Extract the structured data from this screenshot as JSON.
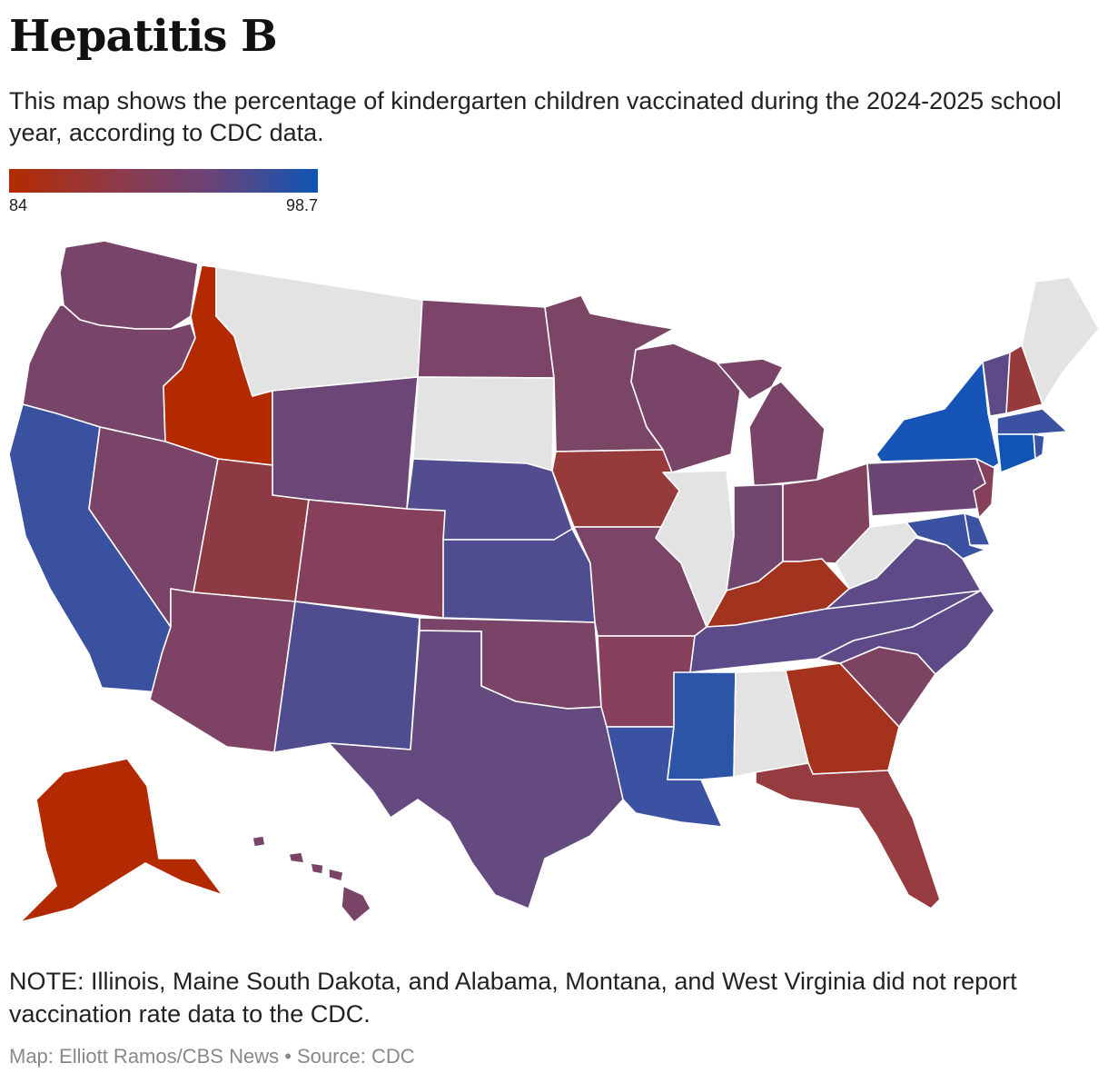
{
  "title": "Hepatitis B",
  "subtitle": "This map shows the percentage of kindergarten children vaccinated during the 2024-2025 school year, according to CDC data.",
  "legend": {
    "min_label": "84",
    "max_label": "98.7",
    "min": 84,
    "max": 98.7,
    "colors": [
      "#b32a00",
      "#0f55b5"
    ]
  },
  "no_data_color": "#e3e3e3",
  "states": [
    {
      "id": "WA",
      "color": "#79446a"
    },
    {
      "id": "OR",
      "color": "#79446a"
    },
    {
      "id": "CA",
      "color": "#3a51a0"
    },
    {
      "id": "ID",
      "color": "#b32a00"
    },
    {
      "id": "NV",
      "color": "#7a4468"
    },
    {
      "id": "MT",
      "color": "#e3e3e3"
    },
    {
      "id": "WY",
      "color": "#6b4676"
    },
    {
      "id": "UT",
      "color": "#8e3a45"
    },
    {
      "id": "AZ",
      "color": "#7d4264"
    },
    {
      "id": "CO",
      "color": "#86405b"
    },
    {
      "id": "NM",
      "color": "#4f4d90"
    },
    {
      "id": "ND",
      "color": "#7b4468"
    },
    {
      "id": "SD",
      "color": "#e3e3e3"
    },
    {
      "id": "NE",
      "color": "#524d8e"
    },
    {
      "id": "KS",
      "color": "#4f4d90"
    },
    {
      "id": "OK",
      "color": "#7a4468"
    },
    {
      "id": "TX",
      "color": "#654a80"
    },
    {
      "id": "MN",
      "color": "#7b4566"
    },
    {
      "id": "IA",
      "color": "#963a3c"
    },
    {
      "id": "MO",
      "color": "#7c4466"
    },
    {
      "id": "AR",
      "color": "#86405b"
    },
    {
      "id": "LA",
      "color": "#3b51a2"
    },
    {
      "id": "WI",
      "color": "#7a4468"
    },
    {
      "id": "IL",
      "color": "#e3e3e3"
    },
    {
      "id": "MI",
      "color": "#7a4468"
    },
    {
      "id": "IN",
      "color": "#71466f"
    },
    {
      "id": "OH",
      "color": "#80425f"
    },
    {
      "id": "KY",
      "color": "#a2331f"
    },
    {
      "id": "TN",
      "color": "#5b4b88"
    },
    {
      "id": "MS",
      "color": "#2c55a8"
    },
    {
      "id": "AL",
      "color": "#e3e3e3"
    },
    {
      "id": "GA",
      "color": "#a4321c"
    },
    {
      "id": "FL",
      "color": "#963b40"
    },
    {
      "id": "SC",
      "color": "#7d4363"
    },
    {
      "id": "NC",
      "color": "#5d4a87"
    },
    {
      "id": "VA",
      "color": "#5d4a87"
    },
    {
      "id": "WV",
      "color": "#e3e3e3"
    },
    {
      "id": "PA",
      "color": "#6c4575"
    },
    {
      "id": "NY",
      "color": "#1654b5"
    },
    {
      "id": "VT",
      "color": "#5d4a87"
    },
    {
      "id": "NH",
      "color": "#963a3c"
    },
    {
      "id": "ME",
      "color": "#e3e3e3"
    },
    {
      "id": "MA",
      "color": "#3b51a2"
    },
    {
      "id": "CT",
      "color": "#0f55b5"
    },
    {
      "id": "RI",
      "color": "#3b51a2"
    },
    {
      "id": "NJ",
      "color": "#86405b"
    },
    {
      "id": "DE",
      "color": "#3b51a2"
    },
    {
      "id": "MD",
      "color": "#3b51a2"
    },
    {
      "id": "AK",
      "color": "#b32a00"
    },
    {
      "id": "HI",
      "color": "#7a4468"
    }
  ],
  "note": "NOTE: Illinois, Maine South Dakota, and Alabama, Montana, and West Virginia did not report vaccination rate data to the CDC.",
  "credit": "Map: Elliott Ramos/CBS News • Source: CDC"
}
